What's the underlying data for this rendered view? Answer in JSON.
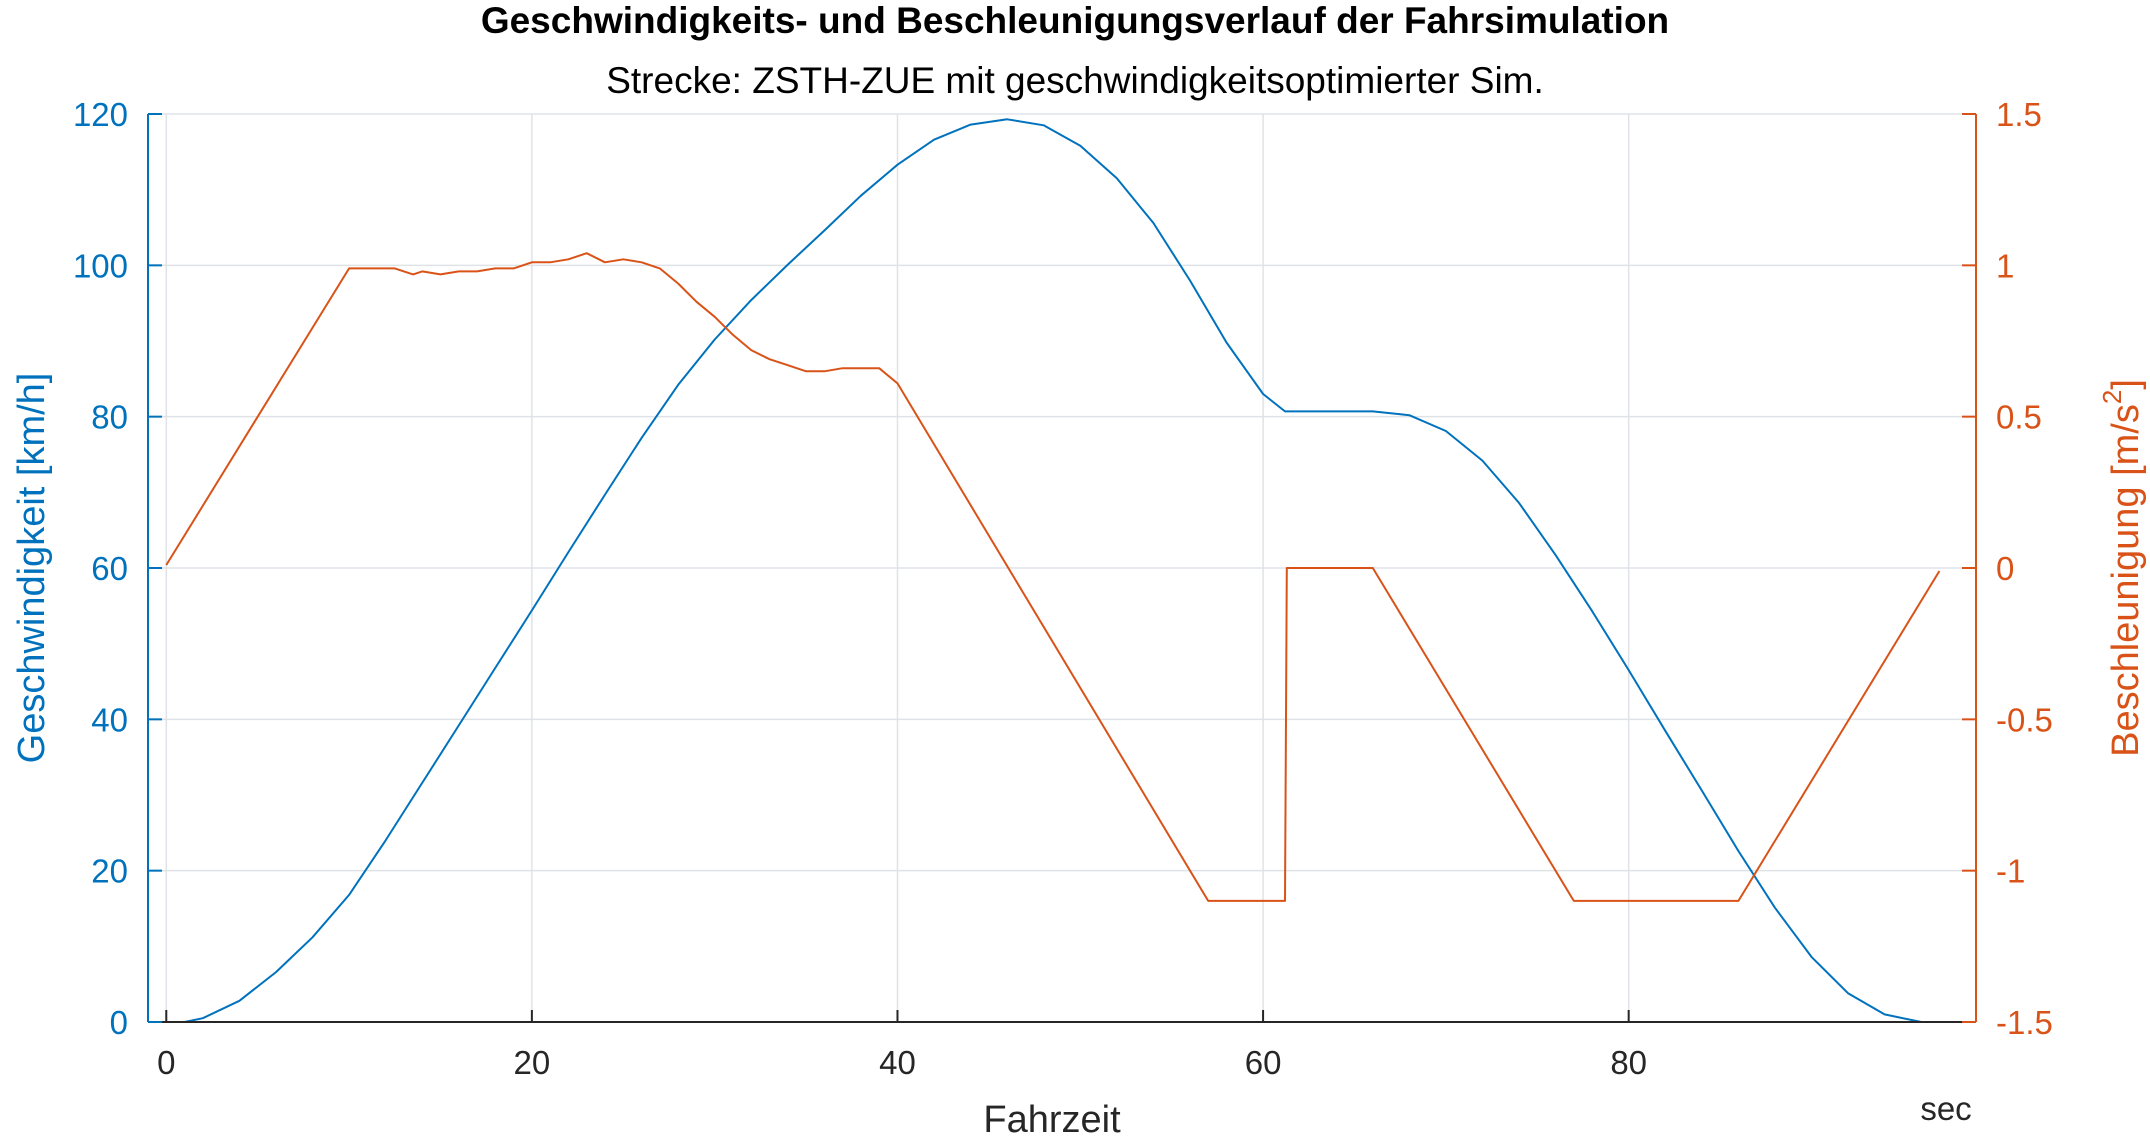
{
  "title": "Geschwindigkeits- und Beschleunigungsverlauf der Fahrsimulation",
  "subtitle": "Strecke: ZSTH-ZUE mit geschwindigkeitsoptimierter Sim.",
  "colors": {
    "speed": "#0072BD",
    "accel": "#D95319",
    "grid": "#DFE3E8",
    "axis": "#262626"
  },
  "chart_data": {
    "type": "line",
    "title": "Geschwindigkeits- und Beschleunigungsverlauf der Fahrsimulation",
    "subtitle": "Strecke: ZSTH-ZUE mit geschwindigkeitsoptimierter Sim.",
    "xlabel": "Fahrzeit",
    "xunit": "sec",
    "ylabel_left": "Geschwindigkeit [km/h]",
    "ylabel_right": "Beschleunigung [m/s",
    "ylabel_right_sup": "2",
    "ylabel_right_close": "]",
    "xlim": [
      -1,
      99
    ],
    "ylim_left": [
      0,
      120
    ],
    "ylim_right": [
      -1.5,
      1.5
    ],
    "xticks": [
      0,
      20,
      40,
      60,
      80
    ],
    "yticks_left": [
      0,
      20,
      40,
      60,
      80,
      100,
      120
    ],
    "yticks_right": [
      -1.5,
      -1,
      -0.5,
      0,
      0.5,
      1,
      1.5
    ],
    "ytick_labels_right": [
      "-1.5",
      "-1",
      "-0.5",
      "0",
      "0.5",
      "1",
      "1.5"
    ],
    "grid": true,
    "series": [
      {
        "name": "Geschwindigkeit",
        "axis": "left",
        "x": [
          0,
          1,
          2,
          4,
          6,
          8,
          10,
          12,
          14,
          16,
          18,
          20,
          22,
          24,
          26,
          28,
          30,
          32,
          34,
          36,
          38,
          40,
          42,
          44,
          46,
          48,
          50,
          52,
          54,
          56,
          58,
          60,
          61.2,
          62,
          64,
          66,
          68,
          70,
          72,
          74,
          76,
          78,
          80,
          82,
          84,
          86,
          88,
          90,
          92,
          94,
          96,
          97
        ],
        "y": [
          0,
          0,
          0.5,
          2.8,
          6.6,
          11.2,
          16.8,
          24,
          31.6,
          39.2,
          46.8,
          54.4,
          62.1,
          69.7,
          77.2,
          84.2,
          90.2,
          95.4,
          100.1,
          104.6,
          109.2,
          113.3,
          116.6,
          118.6,
          119.3,
          118.5,
          115.8,
          111.5,
          105.6,
          98,
          89.8,
          83,
          80.7,
          80.7,
          80.7,
          80.7,
          80.2,
          78.1,
          74.2,
          68.6,
          61.7,
          54.3,
          46.5,
          38.5,
          30.6,
          22.6,
          15.1,
          8.6,
          3.8,
          1.0,
          0,
          0
        ]
      },
      {
        "name": "Beschleunigung",
        "axis": "right",
        "x": [
          0,
          10,
          12.5,
          13.5,
          14,
          15,
          16,
          17,
          18,
          19,
          20,
          21,
          22,
          23,
          24,
          25,
          26,
          27,
          28,
          29,
          30,
          31,
          32,
          33,
          34,
          35,
          36,
          37,
          38,
          39,
          40,
          57,
          61.2,
          61.3,
          66,
          77,
          86,
          97
        ],
        "y": [
          0.01,
          0.99,
          0.99,
          0.97,
          0.98,
          0.97,
          0.98,
          0.98,
          0.99,
          0.99,
          1.01,
          1.01,
          1.02,
          1.04,
          1.01,
          1.02,
          1.01,
          0.99,
          0.94,
          0.88,
          0.83,
          0.77,
          0.72,
          0.69,
          0.67,
          0.65,
          0.65,
          0.66,
          0.66,
          0.66,
          0.61,
          -1.1,
          -1.1,
          0,
          0,
          -1.1,
          -1.1,
          -0.01
        ]
      }
    ]
  }
}
